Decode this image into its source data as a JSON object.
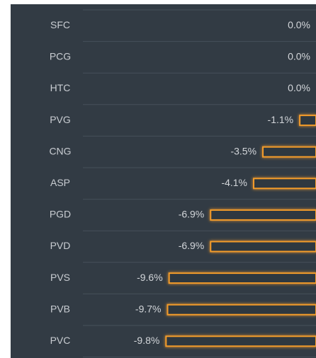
{
  "chart_data": {
    "type": "hbar",
    "categories": [
      "SFC",
      "PCG",
      "HTC",
      "PVG",
      "CNG",
      "ASP",
      "PGD",
      "PVD",
      "PVS",
      "PVB",
      "PVC"
    ],
    "values": [
      0.0,
      0.0,
      0.0,
      -1.1,
      -3.5,
      -4.1,
      -6.9,
      -6.9,
      -9.6,
      -9.7,
      -9.8
    ],
    "value_labels": [
      "0.0%",
      "0.0%",
      "0.0%",
      "-1.1%",
      "-3.5%",
      "-4.1%",
      "-6.9%",
      "-6.9%",
      "-9.6%",
      "-9.7%",
      "-9.8%"
    ],
    "color": "#f39c2b",
    "xlim": [
      -15,
      0
    ]
  }
}
